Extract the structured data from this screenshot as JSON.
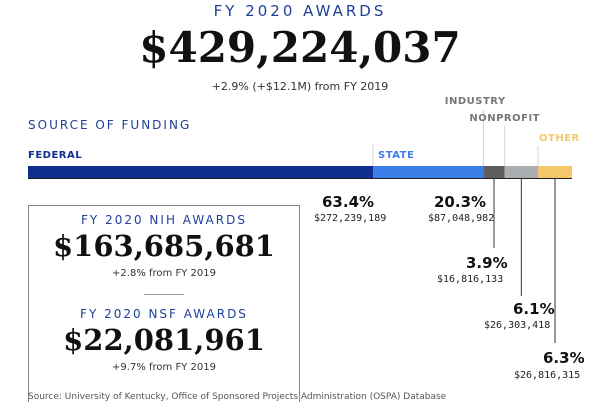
{
  "header": {
    "title": "FY 2020 AWARDS",
    "total": "$429,224,037",
    "change": "+2.9% (+$12.1M) from FY 2019"
  },
  "colors": {
    "federal": "#0f2e8e",
    "state": "#3d7de8",
    "industry": "#5e5e5e",
    "nonprofit": "#a9aeb3",
    "other": "#f4c76b",
    "heading_blue": "#1f3f99",
    "label_gray": "#777777"
  },
  "chart_data": {
    "type": "bar",
    "title": "SOURCE OF FUNDING",
    "orientation": "horizontal-stacked",
    "categories": [
      "FEDERAL",
      "STATE",
      "INDUSTRY",
      "NONPROFIT",
      "OTHER"
    ],
    "values": [
      272239189,
      87048982,
      16816133,
      26303418,
      26816315
    ],
    "percents": [
      "63.4%",
      "20.3%",
      "3.9%",
      "6.1%",
      "6.3%"
    ],
    "amounts": [
      "$272,239,189",
      "$87,048,982",
      "$16,816,133",
      "$26,303,418",
      "$26,816,315"
    ]
  },
  "nih": {
    "title": "FY 2020 NIH AWARDS",
    "amount": "$163,685,681",
    "change": "+2.8% from FY 2019"
  },
  "nsf": {
    "title": "FY 2020 NSF AWARDS",
    "amount": "$22,081,961",
    "change": "+9.7% from FY 2019"
  },
  "source": "Source: University of Kentucky, Office of Sponsored Projects Administration (OSPA) Database"
}
